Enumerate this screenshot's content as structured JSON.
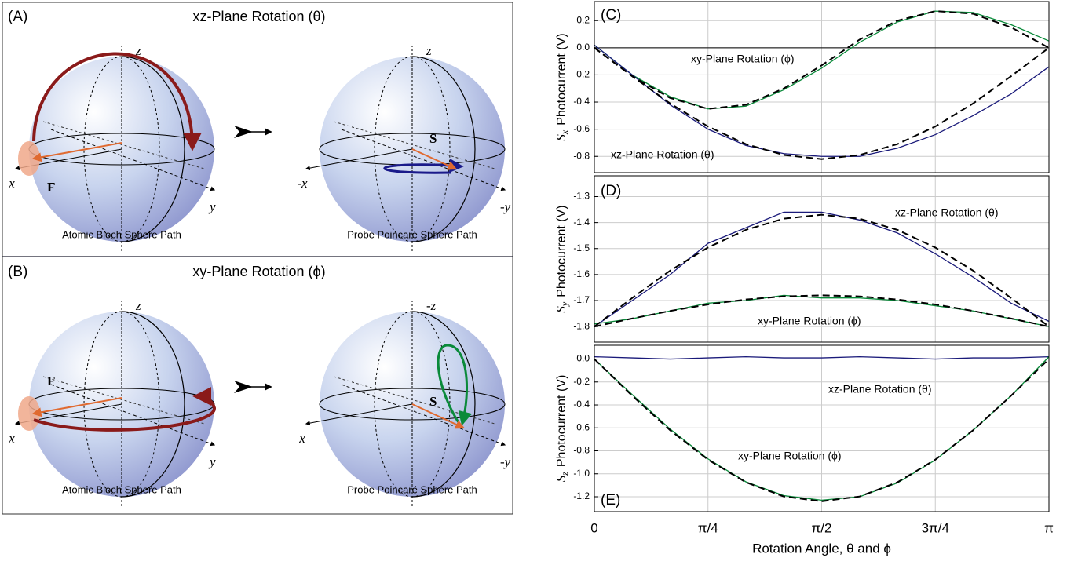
{
  "diagrams": [
    {
      "label": "(A)",
      "title": "xz-Plane Rotation (θ)",
      "captions": [
        "Atomic Bloch Sphere Path",
        "Probe Poincaré Sphere Path"
      ],
      "spheres": [
        {
          "axes": [
            "z",
            "x",
            "y"
          ],
          "vector": "F"
        },
        {
          "axes": [
            "z",
            "-x",
            "-y"
          ],
          "vector": "S"
        }
      ]
    },
    {
      "label": "(B)",
      "title": "xy-Plane Rotation (ϕ)",
      "captions": [
        "Atomic Bloch Sphere Path",
        "Probe Poincaré Sphere Path"
      ],
      "spheres": [
        {
          "axes": [
            "z",
            "x",
            "y"
          ],
          "vector": "F"
        },
        {
          "axes": [
            "-z",
            "x",
            "-y"
          ],
          "vector": "S"
        }
      ]
    }
  ],
  "chart_data": [
    {
      "type": "line",
      "label": "(C)",
      "ylabel_symbol": "S",
      "ylabel_sub": "x",
      "ylabel": "Photocurrent (V)",
      "x": [
        0,
        0.2618,
        0.5236,
        0.7854,
        1.0472,
        1.309,
        1.5708,
        1.8326,
        2.0944,
        2.3562,
        2.618,
        2.8798,
        3.1416
      ],
      "xlim": [
        0,
        3.1416
      ],
      "xticks": [
        0,
        0.7854,
        1.5708,
        2.3562,
        3.1416
      ],
      "ylim": [
        -0.92,
        0.34
      ],
      "yticks": [
        0.2,
        {
          "value": 0,
          "label": "0.0"
        },
        -0.2,
        -0.4,
        -0.6,
        -0.8
      ],
      "grid": true,
      "zero_line": true,
      "series": [
        {
          "name": "xy-Plane Rotation (ϕ)",
          "color": "#0a8a3a",
          "values": [
            0.02,
            -0.2,
            -0.36,
            -0.45,
            -0.43,
            -0.31,
            -0.15,
            0.04,
            0.19,
            0.27,
            0.26,
            0.17,
            0.05
          ]
        },
        {
          "name": "xz-Plane Rotation (θ)",
          "color": "#1a1a7a",
          "values": [
            0.02,
            -0.2,
            -0.42,
            -0.6,
            -0.72,
            -0.78,
            -0.8,
            -0.8,
            -0.74,
            -0.64,
            -0.5,
            -0.34,
            -0.14
          ]
        },
        {
          "color": "#000000",
          "style": "dashed",
          "values": [
            0,
            -0.21,
            -0.37,
            -0.45,
            -0.42,
            -0.3,
            -0.13,
            0.06,
            0.2,
            0.27,
            0.25,
            0.15,
            0
          ]
        },
        {
          "color": "#000000",
          "style": "dashed",
          "values": [
            0,
            -0.21,
            -0.41,
            -0.58,
            -0.71,
            -0.79,
            -0.82,
            -0.79,
            -0.71,
            -0.58,
            -0.41,
            -0.21,
            0
          ]
        }
      ]
    },
    {
      "type": "line",
      "label": "(D)",
      "ylabel_symbol": "S",
      "ylabel_sub": "y",
      "ylabel": "Photocurrent (V)",
      "x": [
        0,
        0.2618,
        0.5236,
        0.7854,
        1.0472,
        1.309,
        1.5708,
        1.8326,
        2.0944,
        2.3562,
        2.618,
        2.8798,
        3.1416
      ],
      "xlim": [
        0,
        3.1416
      ],
      "xticks": [
        0,
        0.7854,
        1.5708,
        2.3562,
        3.1416
      ],
      "ylim": [
        -1.86,
        -1.22
      ],
      "yticks": [
        -1.3,
        -1.4,
        -1.5,
        -1.6,
        -1.7,
        -1.8
      ],
      "grid": true,
      "series": [
        {
          "name": "xz-Plane Rotation (θ)",
          "color": "#1a1a7a",
          "values": [
            -1.8,
            -1.7,
            -1.6,
            -1.48,
            -1.42,
            -1.36,
            -1.36,
            -1.39,
            -1.44,
            -1.52,
            -1.61,
            -1.71,
            -1.78
          ]
        },
        {
          "name": "xy-Plane Rotation (ϕ)",
          "color": "#0a8a3a",
          "values": [
            -1.79,
            -1.77,
            -1.74,
            -1.71,
            -1.7,
            -1.68,
            -1.69,
            -1.69,
            -1.7,
            -1.72,
            -1.74,
            -1.77,
            -1.8
          ]
        },
        {
          "color": "#000000",
          "style": "dashed",
          "values": [
            -1.8,
            -1.69,
            -1.585,
            -1.496,
            -1.428,
            -1.385,
            -1.37,
            -1.385,
            -1.428,
            -1.496,
            -1.585,
            -1.69,
            -1.8
          ]
        },
        {
          "color": "#000000",
          "style": "dashed",
          "values": [
            -1.8,
            -1.769,
            -1.74,
            -1.715,
            -1.696,
            -1.684,
            -1.68,
            -1.684,
            -1.696,
            -1.715,
            -1.74,
            -1.769,
            -1.8
          ]
        }
      ]
    },
    {
      "type": "line",
      "label": "(E)",
      "ylabel_symbol": "S",
      "ylabel_sub": "z",
      "ylabel": "Photocurrent (V)",
      "xlabel": "Rotation Angle, θ and ϕ",
      "x": [
        0,
        0.2618,
        0.5236,
        0.7854,
        1.0472,
        1.309,
        1.5708,
        1.8326,
        2.0944,
        2.3562,
        2.618,
        2.8798,
        3.1416
      ],
      "xlim": [
        0,
        3.1416
      ],
      "xticks": [
        0,
        {
          "value": 0.7854,
          "label": "π/4"
        },
        {
          "value": 1.5708,
          "label": "π/2"
        },
        {
          "value": 2.3562,
          "label": "3π/4"
        },
        {
          "value": 3.1416,
          "label": "π"
        }
      ],
      "ylim": [
        -1.33,
        0.12
      ],
      "yticks": [
        {
          "value": 0,
          "label": "0.0"
        },
        -0.2,
        -0.4,
        -0.6,
        -0.8,
        {
          "value": -1,
          "label": "-1.0"
        },
        -1.2
      ],
      "grid": true,
      "series": [
        {
          "name": "xz-Plane Rotation (θ)",
          "color": "#1a1a7a",
          "values": [
            0.02,
            0.01,
            0,
            0.01,
            0.02,
            0.01,
            0.01,
            0.02,
            0.01,
            0,
            0.01,
            0.01,
            0.02
          ]
        },
        {
          "name": "xy-Plane Rotation (ϕ)",
          "color": "#0a8a3a",
          "values": [
            0,
            -0.31,
            -0.61,
            -0.87,
            -1.07,
            -1.19,
            -1.23,
            -1.2,
            -1.08,
            -0.88,
            -0.62,
            -0.32,
            0.02
          ]
        },
        {
          "color": "#000000",
          "style": "dashed",
          "values": [
            0,
            -0.32,
            -0.62,
            -0.877,
            -1.074,
            -1.198,
            -1.24,
            -1.198,
            -1.074,
            -0.877,
            -0.62,
            -0.32,
            0
          ]
        }
      ]
    }
  ]
}
